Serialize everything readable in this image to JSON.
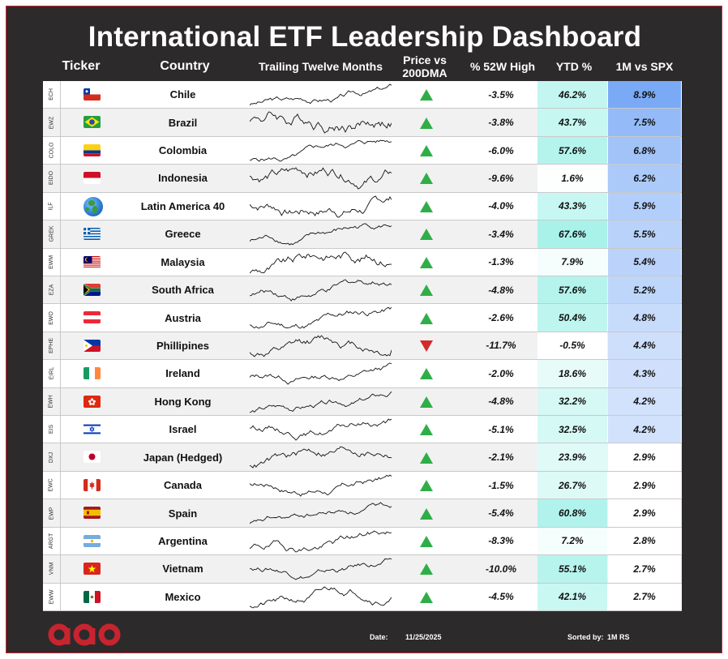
{
  "title": "International ETF Leadership Dashboard",
  "headers": {
    "ticker": "Ticker",
    "country": "Country",
    "ttm": "Trailing Twelve Months",
    "price_vs_200dma": "Price vs 200DMA",
    "pct_52w_high": "% 52W High",
    "ytd": "YTD %",
    "one_m_vs_spx": "1M vs SPX"
  },
  "colors": {
    "up": "#2fae48",
    "down": "#d42a2a",
    "ytd_max": "#a8f2ea",
    "rs_max": "#7aaaf5",
    "brand": "#c8242f"
  },
  "rows": [
    {
      "ticker": "ECH",
      "country": "Chile",
      "flag": "chile",
      "trend": "up",
      "pct_52w": "-3.5%",
      "ytd": "46.2%",
      "ytd_v": 46.2,
      "rs": "8.9%",
      "rs_v": 8.9
    },
    {
      "ticker": "EWZ",
      "country": "Brazil",
      "flag": "brazil",
      "trend": "up",
      "pct_52w": "-3.8%",
      "ytd": "43.7%",
      "ytd_v": 43.7,
      "rs": "7.5%",
      "rs_v": 7.5
    },
    {
      "ticker": "COLO",
      "country": "Colombia",
      "flag": "colombia",
      "trend": "up",
      "pct_52w": "-6.0%",
      "ytd": "57.6%",
      "ytd_v": 57.6,
      "rs": "6.8%",
      "rs_v": 6.8
    },
    {
      "ticker": "EIDO",
      "country": "Indonesia",
      "flag": "indonesia",
      "trend": "up",
      "pct_52w": "-9.6%",
      "ytd": "1.6%",
      "ytd_v": 1.6,
      "rs": "6.2%",
      "rs_v": 6.2
    },
    {
      "ticker": "ILF",
      "country": "Latin America 40",
      "flag": "globe",
      "trend": "up",
      "pct_52w": "-4.0%",
      "ytd": "43.3%",
      "ytd_v": 43.3,
      "rs": "5.9%",
      "rs_v": 5.9
    },
    {
      "ticker": "GREK",
      "country": "Greece",
      "flag": "greece",
      "trend": "up",
      "pct_52w": "-3.4%",
      "ytd": "67.6%",
      "ytd_v": 67.6,
      "rs": "5.5%",
      "rs_v": 5.5
    },
    {
      "ticker": "EWM",
      "country": "Malaysia",
      "flag": "malaysia",
      "trend": "up",
      "pct_52w": "-1.3%",
      "ytd": "7.9%",
      "ytd_v": 7.9,
      "rs": "5.4%",
      "rs_v": 5.4
    },
    {
      "ticker": "EZA",
      "country": "South Africa",
      "flag": "southafrica",
      "trend": "up",
      "pct_52w": "-4.8%",
      "ytd": "57.6%",
      "ytd_v": 57.6,
      "rs": "5.2%",
      "rs_v": 5.2
    },
    {
      "ticker": "EWO",
      "country": "Austria",
      "flag": "austria",
      "trend": "up",
      "pct_52w": "-2.6%",
      "ytd": "50.4%",
      "ytd_v": 50.4,
      "rs": "4.8%",
      "rs_v": 4.8
    },
    {
      "ticker": "EPHE",
      "country": "Phillipines",
      "flag": "philippines",
      "trend": "down",
      "pct_52w": "-11.7%",
      "ytd": "-0.5%",
      "ytd_v": -0.5,
      "rs": "4.4%",
      "rs_v": 4.4
    },
    {
      "ticker": "EIRL",
      "country": "Ireland",
      "flag": "ireland",
      "trend": "up",
      "pct_52w": "-2.0%",
      "ytd": "18.6%",
      "ytd_v": 18.6,
      "rs": "4.3%",
      "rs_v": 4.3
    },
    {
      "ticker": "EWH",
      "country": "Hong Kong",
      "flag": "hongkong",
      "trend": "up",
      "pct_52w": "-4.8%",
      "ytd": "32.2%",
      "ytd_v": 32.2,
      "rs": "4.2%",
      "rs_v": 4.2
    },
    {
      "ticker": "EIS",
      "country": "Israel",
      "flag": "israel",
      "trend": "up",
      "pct_52w": "-5.1%",
      "ytd": "32.5%",
      "ytd_v": 32.5,
      "rs": "4.2%",
      "rs_v": 4.2
    },
    {
      "ticker": "DXJ",
      "country": "Japan (Hedged)",
      "flag": "japan",
      "trend": "up",
      "pct_52w": "-2.1%",
      "ytd": "23.9%",
      "ytd_v": 23.9,
      "rs": "2.9%",
      "rs_v": 2.9
    },
    {
      "ticker": "EWC",
      "country": "Canada",
      "flag": "canada",
      "trend": "up",
      "pct_52w": "-1.5%",
      "ytd": "26.7%",
      "ytd_v": 26.7,
      "rs": "2.9%",
      "rs_v": 2.9
    },
    {
      "ticker": "EWP",
      "country": "Spain",
      "flag": "spain",
      "trend": "up",
      "pct_52w": "-5.4%",
      "ytd": "60.8%",
      "ytd_v": 60.8,
      "rs": "2.9%",
      "rs_v": 2.9
    },
    {
      "ticker": "ARGT",
      "country": "Argentina",
      "flag": "argentina",
      "trend": "up",
      "pct_52w": "-8.3%",
      "ytd": "7.2%",
      "ytd_v": 7.2,
      "rs": "2.8%",
      "rs_v": 2.8
    },
    {
      "ticker": "VNM",
      "country": "Vietnam",
      "flag": "vietnam",
      "trend": "up",
      "pct_52w": "-10.0%",
      "ytd": "55.1%",
      "ytd_v": 55.1,
      "rs": "2.7%",
      "rs_v": 2.7
    },
    {
      "ticker": "EWW",
      "country": "Mexico",
      "flag": "mexico",
      "trend": "up",
      "pct_52w": "-4.5%",
      "ytd": "42.1%",
      "ytd_v": 42.1,
      "rs": "2.7%",
      "rs_v": 2.7
    }
  ],
  "footer": {
    "date_label": "Date:",
    "date_value": "11/25/2025",
    "sorted_label": "Sorted by:",
    "sorted_value": "1M RS",
    "logo_icon": "brand-logo-icon"
  }
}
